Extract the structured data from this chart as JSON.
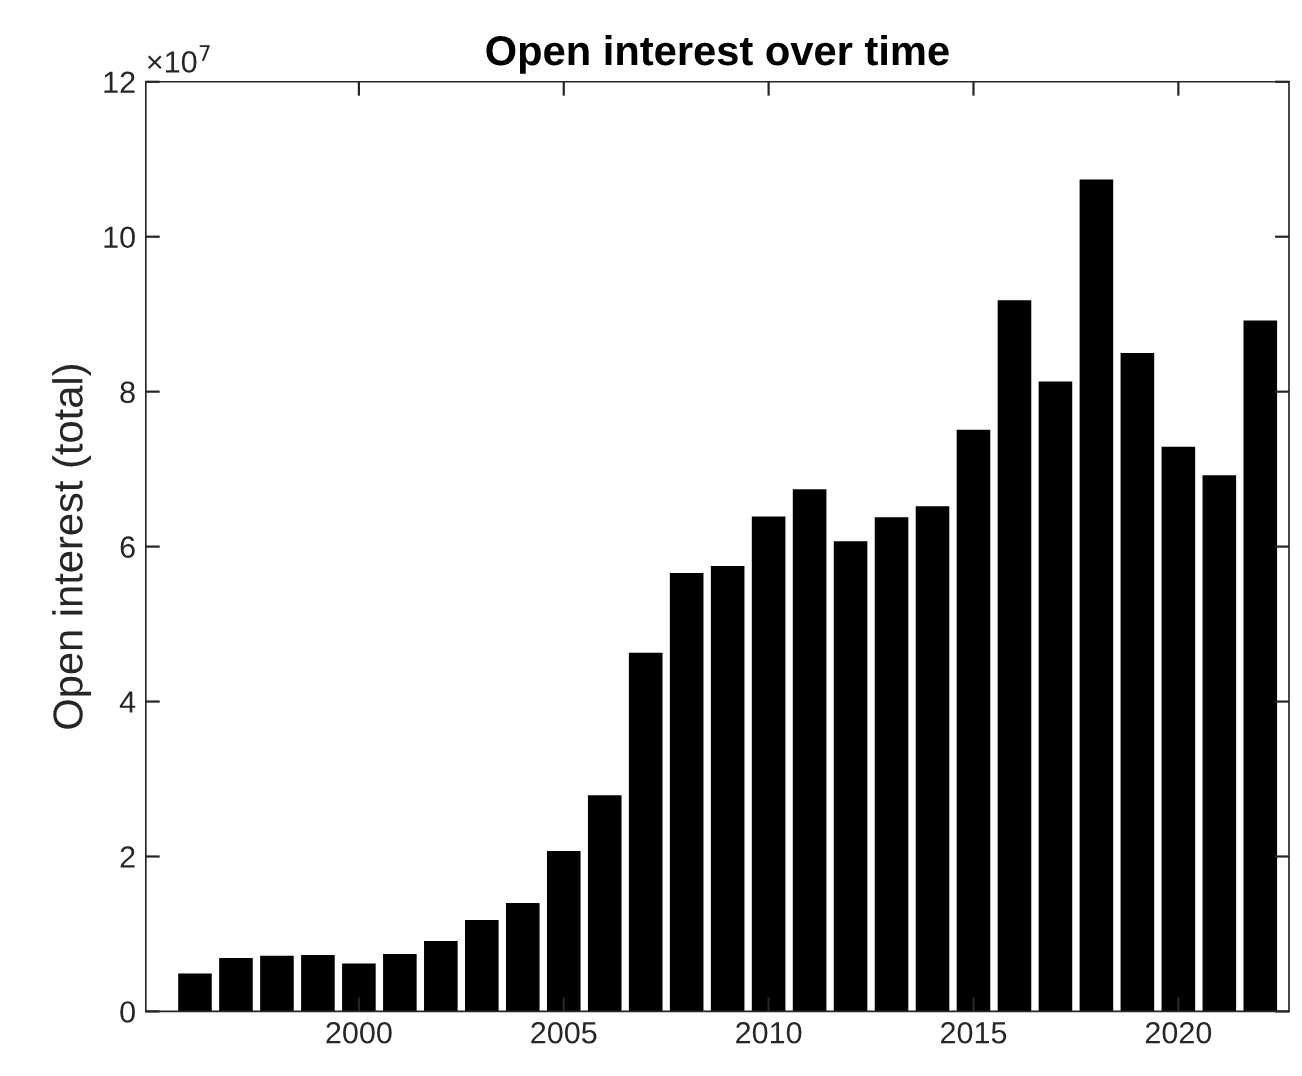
{
  "chart_data": {
    "type": "bar",
    "title": "Open interest over time",
    "ylabel": "Open interest (total)",
    "annotations": [
      "×10$^{7}$"
    ],
    "x": [
      1996,
      1997,
      1998,
      1999,
      2000,
      2001,
      2002,
      2003,
      2004,
      2005,
      2006,
      2007,
      2008,
      2009,
      2010,
      2011,
      2012,
      2013,
      2014,
      2015,
      2016,
      2017,
      2018,
      2019,
      2020,
      2021,
      2022
    ],
    "values": [
      0.49,
      0.69,
      0.72,
      0.73,
      0.62,
      0.74,
      0.91,
      1.18,
      1.4,
      2.07,
      2.79,
      4.63,
      5.66,
      5.75,
      6.39,
      6.74,
      6.07,
      6.38,
      6.52,
      7.51,
      9.18,
      8.13,
      10.74,
      8.5,
      7.29,
      6.92,
      8.92
    ],
    "color": "#000000",
    "xlim": [
      1994.8,
      2022.7
    ],
    "xticks": [
      2000,
      2005,
      2010,
      2015,
      2020
    ],
    "ylim": [
      0,
      12
    ],
    "yticks": [
      0,
      2,
      4,
      6,
      8,
      10,
      12
    ],
    "grid": false
  }
}
